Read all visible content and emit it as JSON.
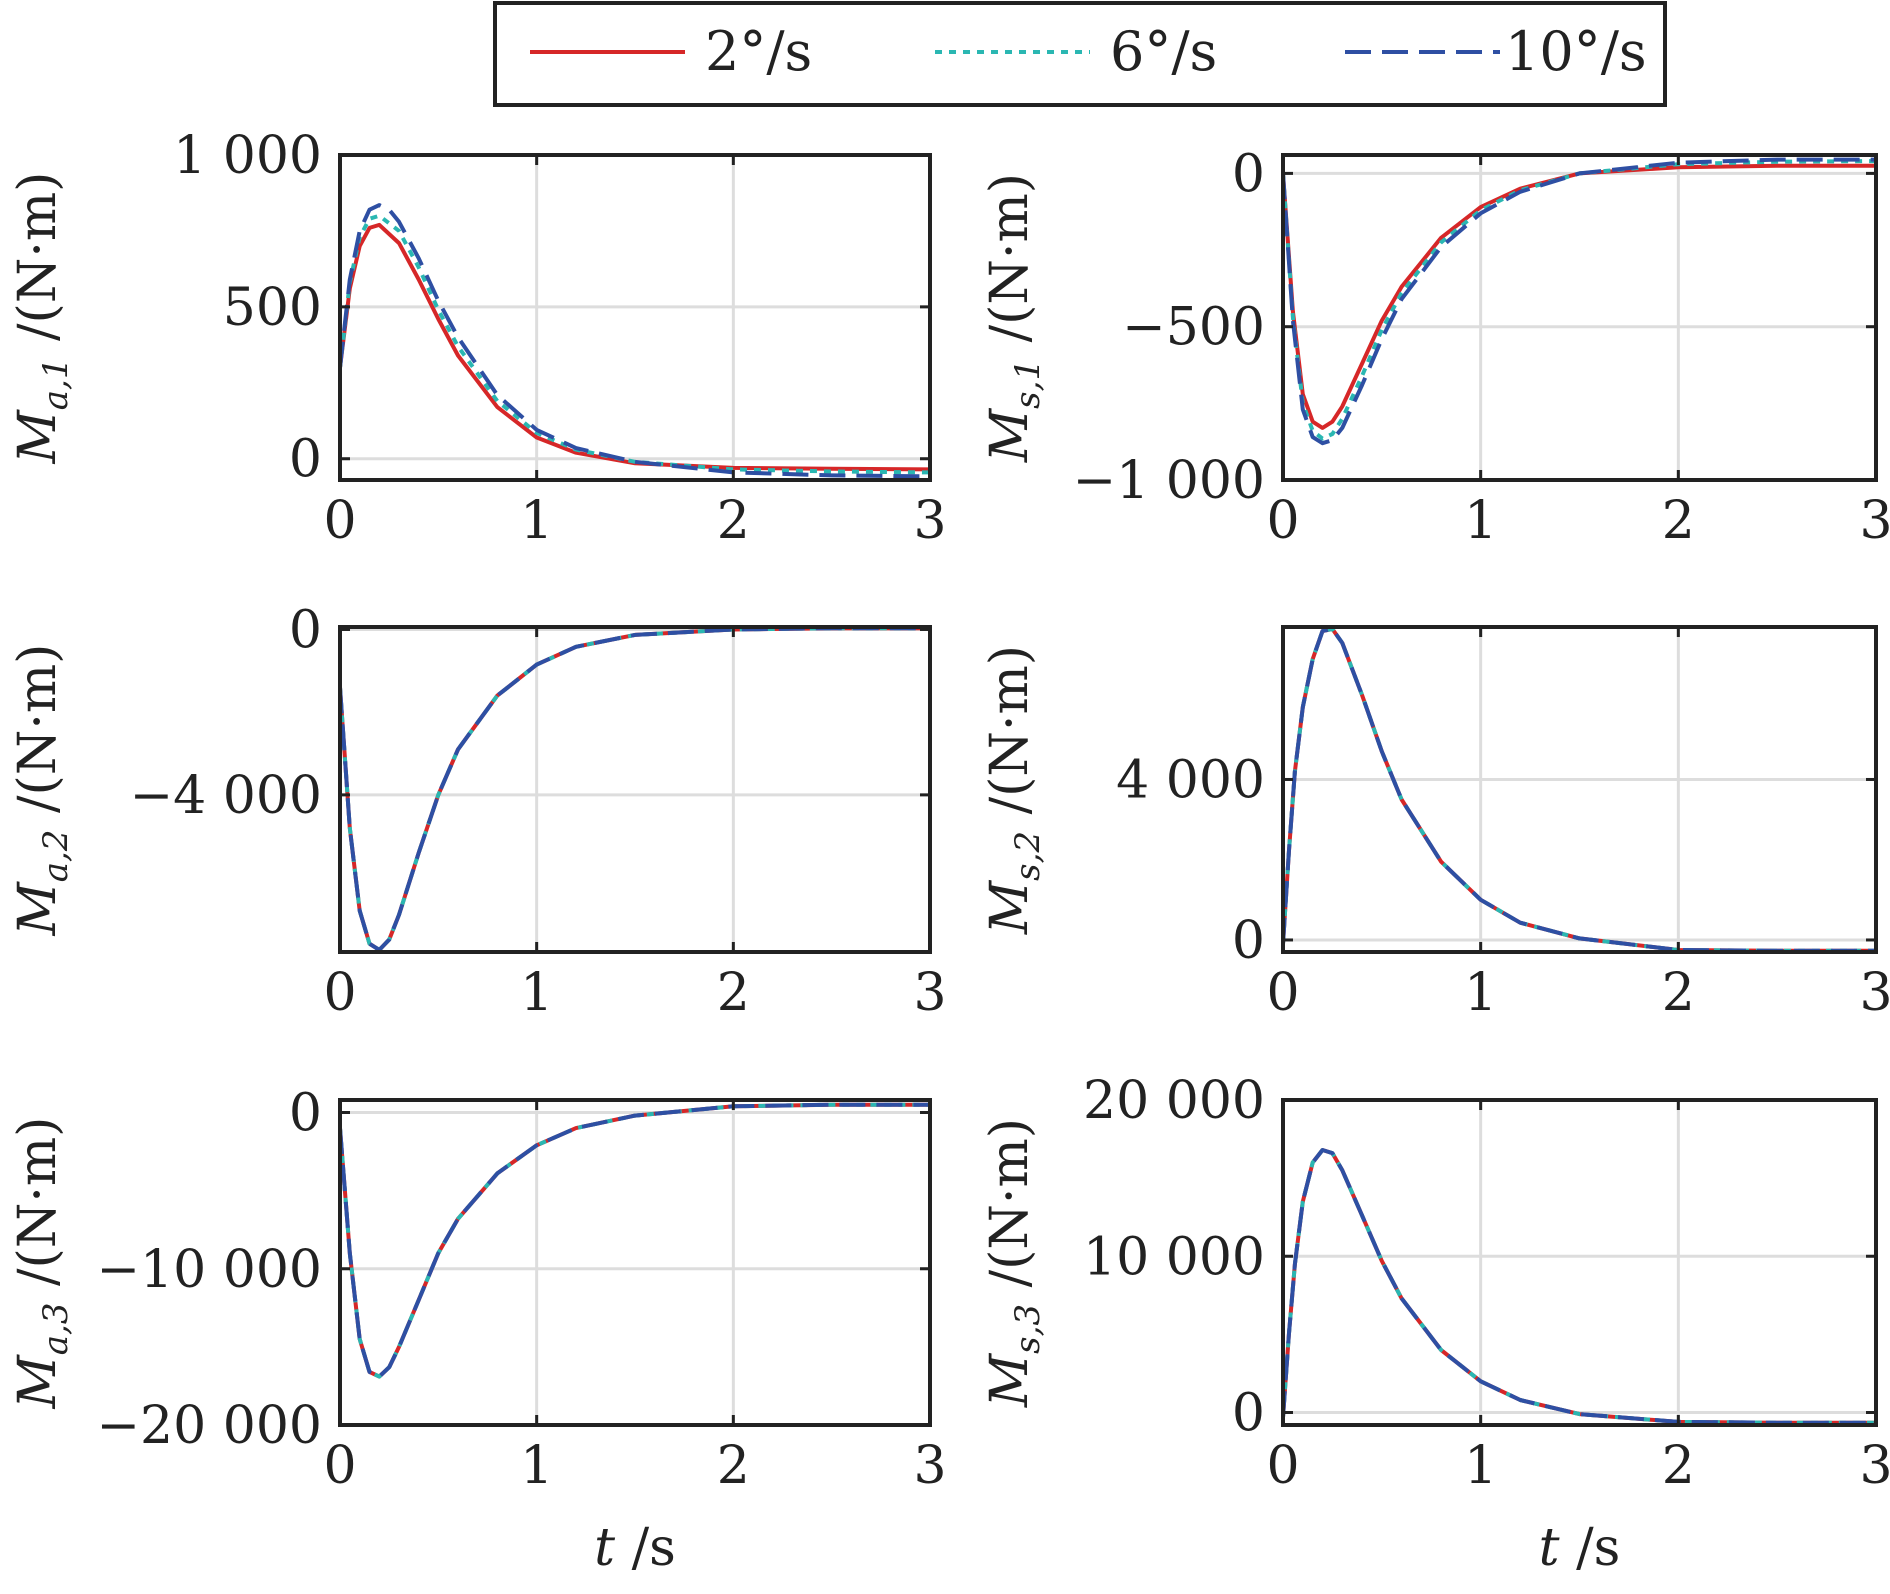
{
  "legend": {
    "entries": [
      {
        "label": "2°/s",
        "color": "#d62728",
        "style": "solid"
      },
      {
        "label": "6°/s",
        "color": "#2ab7b2",
        "style": "dotted"
      },
      {
        "label": "10°/s",
        "color": "#2e4fa3",
        "style": "dashed"
      }
    ]
  },
  "colors": {
    "axes": "#222222",
    "grid": "#dddddd"
  },
  "chart_data": [
    {
      "type": "line",
      "ylabel": "M_{a,1} /(N·m)",
      "ylabel_main": "M",
      "ylabel_sub": "a,1",
      "ylabel_unit": " /(N·m)",
      "xlabel": "",
      "xlim": [
        0,
        3
      ],
      "ylim": [
        -70,
        1000
      ],
      "xticks": [
        0,
        1,
        2,
        3
      ],
      "xtick_labels": [
        "0",
        "1",
        "2",
        "3"
      ],
      "yticks": [
        0,
        500,
        1000
      ],
      "ytick_labels": [
        "0",
        "500",
        "1 000"
      ],
      "grid": true,
      "series": [
        {
          "name": "2°/s",
          "x": [
            0,
            0.05,
            0.1,
            0.15,
            0.2,
            0.3,
            0.4,
            0.5,
            0.6,
            0.8,
            1.0,
            1.2,
            1.5,
            2.0,
            2.5,
            3.0
          ],
          "y": [
            300,
            560,
            700,
            760,
            770,
            710,
            590,
            460,
            340,
            170,
            70,
            20,
            -15,
            -30,
            -33,
            -35
          ]
        },
        {
          "name": "6°/s",
          "x": [
            0,
            0.05,
            0.1,
            0.15,
            0.2,
            0.3,
            0.4,
            0.5,
            0.6,
            0.8,
            1.0,
            1.2,
            1.5,
            2.0,
            2.5,
            3.0
          ],
          "y": [
            300,
            580,
            730,
            790,
            800,
            750,
            630,
            490,
            370,
            190,
            85,
            30,
            -10,
            -35,
            -42,
            -45
          ]
        },
        {
          "name": "10°/s",
          "x": [
            0,
            0.05,
            0.1,
            0.15,
            0.2,
            0.25,
            0.3,
            0.4,
            0.5,
            0.6,
            0.8,
            1.0,
            1.2,
            1.5,
            2.0,
            2.5,
            3.0
          ],
          "y": [
            300,
            590,
            750,
            820,
            835,
            820,
            780,
            660,
            520,
            400,
            210,
            95,
            35,
            -10,
            -45,
            -55,
            -58
          ]
        }
      ]
    },
    {
      "type": "line",
      "ylabel": "M_{s,1} /(N·m)",
      "ylabel_main": "M",
      "ylabel_sub": "s,1",
      "ylabel_unit": " /(N·m)",
      "xlabel": "",
      "xlim": [
        0,
        3
      ],
      "ylim": [
        -1000,
        60
      ],
      "xticks": [
        0,
        1,
        2,
        3
      ],
      "xtick_labels": [
        "0",
        "1",
        "2",
        "3"
      ],
      "yticks": [
        -1000,
        -500,
        0
      ],
      "ytick_labels": [
        "−1 000",
        "−500",
        "0"
      ],
      "grid": true,
      "series": [
        {
          "name": "2°/s",
          "x": [
            0,
            0.05,
            0.1,
            0.15,
            0.2,
            0.25,
            0.3,
            0.4,
            0.5,
            0.6,
            0.8,
            1.0,
            1.2,
            1.5,
            2.0,
            2.5,
            3.0
          ],
          "y": [
            0,
            -450,
            -720,
            -810,
            -830,
            -810,
            -760,
            -620,
            -480,
            -370,
            -210,
            -110,
            -50,
            0,
            20,
            25,
            25
          ]
        },
        {
          "name": "6°/s",
          "x": [
            0,
            0.05,
            0.1,
            0.15,
            0.2,
            0.25,
            0.3,
            0.4,
            0.5,
            0.6,
            0.8,
            1.0,
            1.2,
            1.5,
            2.0,
            2.5,
            3.0
          ],
          "y": [
            0,
            -470,
            -750,
            -840,
            -865,
            -850,
            -800,
            -660,
            -510,
            -390,
            -225,
            -120,
            -55,
            0,
            30,
            38,
            40
          ]
        },
        {
          "name": "10°/s",
          "x": [
            0,
            0.05,
            0.1,
            0.15,
            0.2,
            0.25,
            0.3,
            0.4,
            0.5,
            0.6,
            0.8,
            1.0,
            1.2,
            1.5,
            2.0,
            2.5,
            3.0
          ],
          "y": [
            0,
            -480,
            -770,
            -860,
            -880,
            -870,
            -830,
            -690,
            -540,
            -410,
            -240,
            -130,
            -60,
            0,
            35,
            45,
            45
          ]
        }
      ]
    },
    {
      "type": "line",
      "ylabel": "M_{a,2} /(N·m)",
      "ylabel_main": "M",
      "ylabel_sub": "a,2",
      "ylabel_unit": " /(N·m)",
      "xlabel": "",
      "xlim": [
        0,
        3
      ],
      "ylim": [
        -7800,
        60
      ],
      "xticks": [
        0,
        1,
        2,
        3
      ],
      "xtick_labels": [
        "0",
        "1",
        "2",
        "3"
      ],
      "yticks": [
        -4000,
        0
      ],
      "ytick_labels": [
        "−4 000",
        "0"
      ],
      "grid": true,
      "series": [
        {
          "name": "2°/s",
          "x": [
            0,
            0.05,
            0.1,
            0.15,
            0.2,
            0.25,
            0.3,
            0.4,
            0.5,
            0.6,
            0.8,
            1.0,
            1.2,
            1.5,
            2.0,
            2.5,
            3.0
          ],
          "y": [
            -1400,
            -4800,
            -6800,
            -7600,
            -7750,
            -7500,
            -6900,
            -5400,
            -4000,
            -2900,
            -1600,
            -850,
            -420,
            -130,
            0,
            30,
            30
          ]
        },
        {
          "name": "6°/s",
          "x": [
            0,
            0.05,
            0.1,
            0.15,
            0.2,
            0.25,
            0.3,
            0.4,
            0.5,
            0.6,
            0.8,
            1.0,
            1.2,
            1.5,
            2.0,
            2.5,
            3.0
          ],
          "y": [
            -1400,
            -4800,
            -6800,
            -7600,
            -7750,
            -7500,
            -6900,
            -5400,
            -4000,
            -2900,
            -1600,
            -850,
            -420,
            -130,
            0,
            30,
            30
          ]
        },
        {
          "name": "10°/s",
          "x": [
            0,
            0.05,
            0.1,
            0.15,
            0.2,
            0.25,
            0.3,
            0.4,
            0.5,
            0.6,
            0.8,
            1.0,
            1.2,
            1.5,
            2.0,
            2.5,
            3.0
          ],
          "y": [
            -1400,
            -4800,
            -6800,
            -7600,
            -7750,
            -7500,
            -6900,
            -5400,
            -4000,
            -2900,
            -1600,
            -850,
            -420,
            -130,
            0,
            30,
            30
          ]
        }
      ]
    },
    {
      "type": "line",
      "ylabel": "M_{s,2} /(N·m)",
      "ylabel_main": "M",
      "ylabel_sub": "s,2",
      "ylabel_unit": " /(N·m)",
      "xlabel": "",
      "xlim": [
        0,
        3
      ],
      "ylim": [
        -300,
        7800
      ],
      "xticks": [
        0,
        1,
        2,
        3
      ],
      "xtick_labels": [
        "0",
        "1",
        "2",
        "3"
      ],
      "yticks": [
        0,
        4000
      ],
      "ytick_labels": [
        "0",
        "4 000"
      ],
      "grid": true,
      "series": [
        {
          "name": "2°/s",
          "x": [
            0,
            0.03,
            0.06,
            0.1,
            0.15,
            0.2,
            0.25,
            0.3,
            0.4,
            0.5,
            0.6,
            0.8,
            1.0,
            1.2,
            1.5,
            2.0,
            2.5,
            3.0
          ],
          "y": [
            -100,
            2200,
            4200,
            5800,
            7000,
            7700,
            7750,
            7400,
            6100,
            4700,
            3500,
            1950,
            1000,
            430,
            40,
            -250,
            -270,
            -270
          ]
        },
        {
          "name": "6°/s",
          "x": [
            0,
            0.03,
            0.06,
            0.1,
            0.15,
            0.2,
            0.25,
            0.3,
            0.4,
            0.5,
            0.6,
            0.8,
            1.0,
            1.2,
            1.5,
            2.0,
            2.5,
            3.0
          ],
          "y": [
            -100,
            2200,
            4200,
            5800,
            7000,
            7700,
            7750,
            7400,
            6100,
            4700,
            3500,
            1950,
            1000,
            430,
            40,
            -250,
            -270,
            -270
          ]
        },
        {
          "name": "10°/s",
          "x": [
            0,
            0.03,
            0.06,
            0.1,
            0.15,
            0.2,
            0.25,
            0.3,
            0.4,
            0.5,
            0.6,
            0.8,
            1.0,
            1.2,
            1.5,
            2.0,
            2.5,
            3.0
          ],
          "y": [
            -100,
            2200,
            4200,
            5800,
            7000,
            7700,
            7750,
            7400,
            6100,
            4700,
            3500,
            1950,
            1000,
            430,
            40,
            -250,
            -270,
            -270
          ]
        }
      ]
    },
    {
      "type": "line",
      "ylabel": "M_{a,3} /(N·m)",
      "ylabel_main": "M",
      "ylabel_sub": "a,3",
      "ylabel_unit": " /(N·m)",
      "xlabel": "t /s",
      "xlabel_main": "t",
      "xlabel_unit": " /s",
      "xlim": [
        0,
        3
      ],
      "ylim": [
        -20000,
        800
      ],
      "xticks": [
        0,
        1,
        2,
        3
      ],
      "xtick_labels": [
        "0",
        "1",
        "2",
        "3"
      ],
      "yticks": [
        -20000,
        -10000,
        0
      ],
      "ytick_labels": [
        "−20 000",
        "−10 000",
        "0"
      ],
      "grid": true,
      "series": [
        {
          "name": "2°/s",
          "x": [
            0,
            0.05,
            0.1,
            0.15,
            0.2,
            0.25,
            0.3,
            0.4,
            0.5,
            0.6,
            0.8,
            1.0,
            1.2,
            1.5,
            2.0,
            2.5,
            3.0
          ],
          "y": [
            -1000,
            -9000,
            -14500,
            -16600,
            -16900,
            -16300,
            -15000,
            -12000,
            -9000,
            -6800,
            -3900,
            -2100,
            -1000,
            -200,
            400,
            500,
            500
          ]
        },
        {
          "name": "6°/s",
          "x": [
            0,
            0.05,
            0.1,
            0.15,
            0.2,
            0.25,
            0.3,
            0.4,
            0.5,
            0.6,
            0.8,
            1.0,
            1.2,
            1.5,
            2.0,
            2.5,
            3.0
          ],
          "y": [
            -1000,
            -9000,
            -14500,
            -16600,
            -16900,
            -16300,
            -15000,
            -12000,
            -9000,
            -6800,
            -3900,
            -2100,
            -1000,
            -200,
            400,
            500,
            500
          ]
        },
        {
          "name": "10°/s",
          "x": [
            0,
            0.05,
            0.1,
            0.15,
            0.2,
            0.25,
            0.3,
            0.4,
            0.5,
            0.6,
            0.8,
            1.0,
            1.2,
            1.5,
            2.0,
            2.5,
            3.0
          ],
          "y": [
            -1000,
            -9000,
            -14500,
            -16600,
            -16900,
            -16300,
            -15000,
            -12000,
            -9000,
            -6800,
            -3900,
            -2100,
            -1000,
            -200,
            400,
            500,
            500
          ]
        }
      ]
    },
    {
      "type": "line",
      "ylabel": "M_{s,3} /(N·m)",
      "ylabel_main": "M",
      "ylabel_sub": "s,3",
      "ylabel_unit": " /(N·m)",
      "xlabel": "t /s",
      "xlabel_main": "t",
      "xlabel_unit": " /s",
      "xlim": [
        0,
        3
      ],
      "ylim": [
        -800,
        20000
      ],
      "xticks": [
        0,
        1,
        2,
        3
      ],
      "xtick_labels": [
        "0",
        "1",
        "2",
        "3"
      ],
      "yticks": [
        0,
        10000,
        20000
      ],
      "ytick_labels": [
        "0",
        "10 000",
        "20 000"
      ],
      "grid": true,
      "series": [
        {
          "name": "2°/s",
          "x": [
            0,
            0.03,
            0.06,
            0.1,
            0.15,
            0.2,
            0.25,
            0.3,
            0.4,
            0.5,
            0.6,
            0.8,
            1.0,
            1.2,
            1.5,
            2.0,
            2.5,
            3.0
          ],
          "y": [
            -300,
            5000,
            9500,
            13500,
            16000,
            16800,
            16600,
            15500,
            12600,
            9700,
            7300,
            4000,
            2000,
            800,
            -100,
            -600,
            -650,
            -650
          ]
        },
        {
          "name": "6°/s",
          "x": [
            0,
            0.03,
            0.06,
            0.1,
            0.15,
            0.2,
            0.25,
            0.3,
            0.4,
            0.5,
            0.6,
            0.8,
            1.0,
            1.2,
            1.5,
            2.0,
            2.5,
            3.0
          ],
          "y": [
            -300,
            5000,
            9500,
            13500,
            16000,
            16800,
            16600,
            15500,
            12600,
            9700,
            7300,
            4000,
            2000,
            800,
            -100,
            -600,
            -650,
            -650
          ]
        },
        {
          "name": "10°/s",
          "x": [
            0,
            0.03,
            0.06,
            0.1,
            0.15,
            0.2,
            0.25,
            0.3,
            0.4,
            0.5,
            0.6,
            0.8,
            1.0,
            1.2,
            1.5,
            2.0,
            2.5,
            3.0
          ],
          "y": [
            -300,
            5000,
            9500,
            13500,
            16000,
            16800,
            16600,
            15500,
            12600,
            9700,
            7300,
            4000,
            2000,
            800,
            -100,
            -600,
            -650,
            -650
          ]
        }
      ]
    }
  ]
}
